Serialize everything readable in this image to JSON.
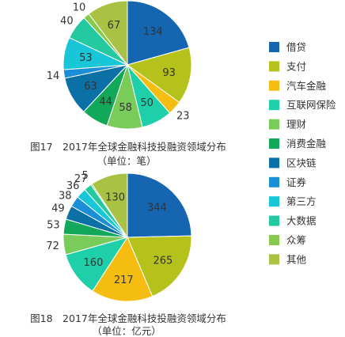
{
  "legend": {
    "items": [
      {
        "label": "借贷",
        "color": "#1565b0"
      },
      {
        "label": "支付",
        "color": "#b5c21c"
      },
      {
        "label": "汽车金融",
        "color": "#f5bd12"
      },
      {
        "label": "互联网保险",
        "color": "#1fcfa9"
      },
      {
        "label": "理财",
        "color": "#7acc5a"
      },
      {
        "label": "消费金融",
        "color": "#12a85a"
      },
      {
        "label": "区块链",
        "color": "#0b70a6"
      },
      {
        "label": "证券",
        "color": "#1a8fd8"
      },
      {
        "label": "第三方",
        "color": "#17c7d8"
      },
      {
        "label": "大数据",
        "color": "#25c9a0"
      },
      {
        "label": "众筹",
        "color": "#86c94e"
      },
      {
        "label": "其他",
        "color": "#a9c243"
      }
    ]
  },
  "chart_data": [
    {
      "type": "pie",
      "title": "图17　2017年全球金融科技投融资领域分布",
      "subtitle": "（单位：笔）",
      "categories": [
        "借贷",
        "支付",
        "汽车金融",
        "互联网保险",
        "理财",
        "消费金融",
        "区块链",
        "证券",
        "第三方",
        "大数据",
        "众筹",
        "其他"
      ],
      "values": [
        134,
        93,
        23,
        50,
        58,
        44,
        63,
        14,
        53,
        40,
        10,
        67
      ]
    },
    {
      "type": "pie",
      "title": "图18　2017年全球金融科技投融资领域分布",
      "subtitle": "（单位：亿元）",
      "categories": [
        "借贷",
        "支付",
        "汽车金融",
        "互联网保险",
        "理财",
        "消费金融",
        "区块链",
        "证券",
        "第三方",
        "大数据",
        "众筹",
        "其他"
      ],
      "values": [
        344,
        265,
        217,
        160,
        72,
        53,
        49,
        38,
        36,
        27,
        5,
        130
      ]
    }
  ]
}
